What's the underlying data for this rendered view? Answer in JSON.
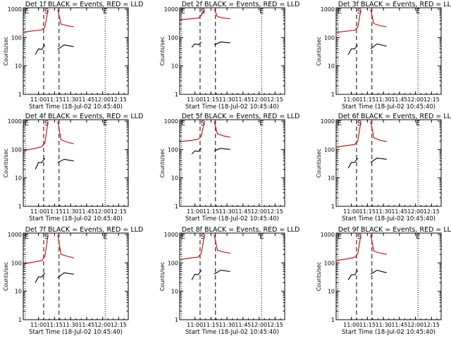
{
  "common": {
    "ylabel": "Counts/sec",
    "xlabel": "Start Time (18-Jul-02 10:45:40)",
    "x_tick_labels": [
      "11:00",
      "11:15",
      "11:30",
      "11:45",
      "12:00",
      "12:15"
    ],
    "y_tick_labels": [
      "1",
      "10",
      "100",
      "1000"
    ],
    "marker_labels": [
      "E",
      "S",
      "E"
    ],
    "colors": {
      "events": "#000000",
      "lld": "#cc0000"
    }
  },
  "chart_data": [
    {
      "type": "line",
      "title": "Det 1f BLACK = Events, RED = LLD",
      "xlabel": "Start Time (18-Jul-02 10:45:40)",
      "ylabel": "Counts/sec",
      "yscale": "log",
      "ylim": [
        1,
        1000
      ],
      "x_ticks": [
        "11:00",
        "11:15",
        "11:30",
        "11:45",
        "12:00",
        "12:15"
      ],
      "series": [
        {
          "name": "Events",
          "color": "#000000",
          "segments": [
            {
              "x": [
                10.95,
                11.0,
                11.05,
                11.1
              ],
              "y": [
                25,
                40,
                38,
                55
              ]
            },
            {
              "x": [
                11.3,
                11.4,
                11.55
              ],
              "y": [
                38,
                55,
                48
              ]
            }
          ]
        },
        {
          "name": "LLD",
          "color": "#cc0000",
          "segments": [
            {
              "x": [
                10.77,
                10.85,
                10.95,
                11.05,
                11.1,
                11.15
              ],
              "y": [
                150,
                165,
                175,
                185,
                230,
                1000
              ]
            },
            {
              "x": [
                11.3,
                11.35,
                11.45,
                11.55
              ],
              "y": [
                1000,
                300,
                260,
                240
              ]
            }
          ]
        }
      ],
      "markers": [
        {
          "label": "E",
          "x": 10.77
        },
        {
          "label": "S",
          "x": 11.1
        },
        {
          "label": "E",
          "x": 12.04
        }
      ]
    },
    {
      "type": "line",
      "title": "Det 2f BLACK = Events, RED = LLD",
      "xlabel": "Start Time (18-Jul-02 10:45:40)",
      "ylabel": "Counts/sec",
      "yscale": "log",
      "ylim": [
        1,
        1000
      ],
      "x_ticks": [
        "11:00",
        "11:15",
        "11:30",
        "11:45",
        "12:00",
        "12:15"
      ],
      "series": [
        {
          "name": "Events",
          "color": "#000000",
          "segments": [
            {
              "x": [
                10.95,
                11.0,
                11.05,
                11.1
              ],
              "y": [
                45,
                60,
                55,
                70
              ]
            },
            {
              "x": [
                11.3,
                11.4,
                11.55
              ],
              "y": [
                55,
                70,
                65
              ]
            }
          ]
        },
        {
          "name": "LLD",
          "color": "#cc0000",
          "segments": [
            {
              "x": [
                10.77,
                10.85,
                10.95,
                11.05,
                11.1,
                11.15
              ],
              "y": [
                430,
                440,
                460,
                480,
                600,
                1000
              ]
            },
            {
              "x": [
                11.3,
                11.35,
                11.45,
                11.55
              ],
              "y": [
                1000,
                550,
                480,
                460
              ]
            }
          ]
        }
      ],
      "markers": [
        {
          "label": "E",
          "x": 10.77
        },
        {
          "label": "S",
          "x": 11.1
        },
        {
          "label": "E",
          "x": 12.04
        }
      ]
    },
    {
      "type": "line",
      "title": "Det 3f BLACK = Events, RED = LLD",
      "xlabel": "Start Time (18-Jul-02 10:45:40)",
      "ylabel": "Counts/sec",
      "yscale": "log",
      "ylim": [
        1,
        1000
      ],
      "x_ticks": [
        "11:00",
        "11:15",
        "11:30",
        "11:45",
        "12:00",
        "12:15"
      ],
      "series": [
        {
          "name": "Events",
          "color": "#000000",
          "segments": [
            {
              "x": [
                10.95,
                11.0,
                11.05,
                11.1
              ],
              "y": [
                25,
                40,
                40,
                55
              ]
            },
            {
              "x": [
                11.3,
                11.4,
                11.55
              ],
              "y": [
                40,
                60,
                50
              ]
            }
          ]
        },
        {
          "name": "LLD",
          "color": "#cc0000",
          "segments": [
            {
              "x": [
                10.77,
                10.85,
                10.95,
                11.05,
                11.1,
                11.15
              ],
              "y": [
                150,
                160,
                170,
                180,
                230,
                1000
              ]
            },
            {
              "x": [
                11.3,
                11.35,
                11.45,
                11.55
              ],
              "y": [
                1000,
                310,
                260,
                240
              ]
            }
          ]
        }
      ],
      "markers": [
        {
          "label": "E",
          "x": 10.77
        },
        {
          "label": "S",
          "x": 11.1
        },
        {
          "label": "E",
          "x": 12.04
        }
      ]
    },
    {
      "type": "line",
      "title": "Det 4f BLACK = Events, RED = LLD",
      "xlabel": "Start Time (18-Jul-02 10:45:40)",
      "ylabel": "Counts/sec",
      "yscale": "log",
      "ylim": [
        1,
        1000
      ],
      "x_ticks": [
        "11:00",
        "11:15",
        "11:30",
        "11:45",
        "12:00",
        "12:15"
      ],
      "series": [
        {
          "name": "Events",
          "color": "#000000",
          "segments": [
            {
              "x": [
                10.95,
                11.0,
                11.05,
                11.1
              ],
              "y": [
                20,
                35,
                35,
                50
              ]
            },
            {
              "x": [
                11.3,
                11.4,
                11.55
              ],
              "y": [
                35,
                45,
                40
              ]
            }
          ]
        },
        {
          "name": "LLD",
          "color": "#cc0000",
          "segments": [
            {
              "x": [
                10.77,
                10.85,
                10.95,
                11.05,
                11.1,
                11.15
              ],
              "y": [
                90,
                100,
                110,
                125,
                170,
                1000
              ]
            },
            {
              "x": [
                11.3,
                11.35,
                11.45,
                11.55
              ],
              "y": [
                1000,
                220,
                180,
                160
              ]
            }
          ]
        }
      ],
      "markers": [
        {
          "label": "E",
          "x": 10.77
        },
        {
          "label": "S",
          "x": 11.1
        },
        {
          "label": "E",
          "x": 12.04
        }
      ]
    },
    {
      "type": "line",
      "title": "Det 5f BLACK = Events, RED = LLD",
      "xlabel": "Start Time (18-Jul-02 10:45:40)",
      "ylabel": "Counts/sec",
      "yscale": "log",
      "ylim": [
        1,
        1000
      ],
      "x_ticks": [
        "11:00",
        "11:15",
        "11:30",
        "11:45",
        "12:00",
        "12:15"
      ],
      "series": [
        {
          "name": "Events",
          "color": "#000000",
          "segments": [
            {
              "x": [
                10.95,
                11.0,
                11.05,
                11.1
              ],
              "y": [
                70,
                90,
                85,
                110
              ]
            },
            {
              "x": [
                11.3,
                11.4,
                11.55
              ],
              "y": [
                90,
                110,
                100
              ]
            }
          ]
        },
        {
          "name": "LLD",
          "color": "#cc0000",
          "segments": [
            {
              "x": [
                10.77,
                10.85,
                10.95,
                11.05,
                11.1,
                11.15
              ],
              "y": [
                190,
                200,
                210,
                230,
                300,
                1000
              ]
            },
            {
              "x": [
                11.3,
                11.35,
                11.45,
                11.55
              ],
              "y": [
                1000,
                360,
                300,
                270
              ]
            }
          ]
        }
      ],
      "markers": [
        {
          "label": "E",
          "x": 10.77
        },
        {
          "label": "S",
          "x": 11.1
        },
        {
          "label": "E",
          "x": 12.04
        }
      ]
    },
    {
      "type": "line",
      "title": "Det 6f BLACK = Events, RED = LLD",
      "xlabel": "Start Time (18-Jul-02 10:45:40)",
      "ylabel": "Counts/sec",
      "yscale": "log",
      "ylim": [
        1,
        1000
      ],
      "x_ticks": [
        "11:00",
        "11:15",
        "11:30",
        "11:45",
        "12:00",
        "12:15"
      ],
      "series": [
        {
          "name": "Events",
          "color": "#000000",
          "segments": [
            {
              "x": [
                10.95,
                11.0,
                11.05,
                11.1
              ],
              "y": [
                22,
                35,
                35,
                50
              ]
            },
            {
              "x": [
                11.3,
                11.4,
                11.55
              ],
              "y": [
                35,
                50,
                45
              ]
            }
          ]
        },
        {
          "name": "LLD",
          "color": "#cc0000",
          "segments": [
            {
              "x": [
                10.77,
                10.85,
                10.95,
                11.05,
                11.1,
                11.15
              ],
              "y": [
                120,
                130,
                140,
                150,
                200,
                1000
              ]
            },
            {
              "x": [
                11.3,
                11.35,
                11.45,
                11.55
              ],
              "y": [
                1000,
                260,
                210,
                190
              ]
            }
          ]
        }
      ],
      "markers": [
        {
          "label": "E",
          "x": 10.77
        },
        {
          "label": "S",
          "x": 11.1
        },
        {
          "label": "E",
          "x": 12.04
        }
      ]
    },
    {
      "type": "line",
      "title": "Det 7f BLACK = Events, RED = LLD",
      "xlabel": "Start Time (18-Jul-02 10:45:40)",
      "ylabel": "Counts/sec",
      "yscale": "log",
      "ylim": [
        1,
        1000
      ],
      "x_ticks": [
        "11:00",
        "11:15",
        "11:30",
        "11:45",
        "12:00",
        "12:15"
      ],
      "series": [
        {
          "name": "Events",
          "color": "#000000",
          "segments": [
            {
              "x": [
                10.95,
                11.0,
                11.05,
                11.1
              ],
              "y": [
                20,
                32,
                32,
                45
              ]
            },
            {
              "x": [
                11.3,
                11.4,
                11.55
              ],
              "y": [
                30,
                45,
                40
              ]
            }
          ]
        },
        {
          "name": "LLD",
          "color": "#cc0000",
          "segments": [
            {
              "x": [
                10.77,
                10.85,
                10.95,
                11.05,
                11.1,
                11.15
              ],
              "y": [
                90,
                100,
                110,
                120,
                170,
                1000
              ]
            },
            {
              "x": [
                11.3,
                11.35,
                11.45,
                11.55
              ],
              "y": [
                1000,
                200,
                170,
                150
              ]
            }
          ]
        }
      ],
      "markers": [
        {
          "label": "E",
          "x": 10.77
        },
        {
          "label": "S",
          "x": 11.1
        },
        {
          "label": "E",
          "x": 12.04
        }
      ]
    },
    {
      "type": "line",
      "title": "Det 8f BLACK = Events, RED = LLD",
      "xlabel": "Start Time (18-Jul-02 10:45:40)",
      "ylabel": "Counts/sec",
      "yscale": "log",
      "ylim": [
        1,
        1000
      ],
      "x_ticks": [
        "11:00",
        "11:15",
        "11:30",
        "11:45",
        "12:00",
        "12:15"
      ],
      "series": [
        {
          "name": "Events",
          "color": "#000000",
          "segments": [
            {
              "x": [
                10.95,
                11.0,
                11.05,
                11.1
              ],
              "y": [
                25,
                40,
                38,
                55
              ]
            },
            {
              "x": [
                11.3,
                11.4,
                11.55
              ],
              "y": [
                40,
                55,
                50
              ]
            }
          ]
        },
        {
          "name": "LLD",
          "color": "#cc0000",
          "segments": [
            {
              "x": [
                10.77,
                10.85,
                10.95,
                11.05,
                11.1,
                11.15
              ],
              "y": [
                130,
                140,
                150,
                160,
                220,
                1000
              ]
            },
            {
              "x": [
                11.3,
                11.35,
                11.45,
                11.55
              ],
              "y": [
                1000,
                280,
                240,
                220
              ]
            }
          ]
        }
      ],
      "markers": [
        {
          "label": "E",
          "x": 10.77
        },
        {
          "label": "S",
          "x": 11.1
        },
        {
          "label": "E",
          "x": 12.04
        }
      ]
    },
    {
      "type": "line",
      "title": "Det 9f BLACK = Events, RED = LLD",
      "xlabel": "Start Time (18-Jul-02 10:45:40)",
      "ylabel": "Counts/sec",
      "yscale": "log",
      "ylim": [
        1,
        1000
      ],
      "x_ticks": [
        "11:00",
        "11:15",
        "11:30",
        "11:45",
        "12:00",
        "12:15"
      ],
      "series": [
        {
          "name": "Events",
          "color": "#000000",
          "segments": [
            {
              "x": [
                10.95,
                11.0,
                11.05,
                11.1
              ],
              "y": [
                25,
                38,
                38,
                55
              ]
            },
            {
              "x": [
                11.3,
                11.4,
                11.55
              ],
              "y": [
                40,
                55,
                45
              ]
            }
          ]
        },
        {
          "name": "LLD",
          "color": "#cc0000",
          "segments": [
            {
              "x": [
                10.77,
                10.85,
                10.95,
                11.05,
                11.1,
                11.15
              ],
              "y": [
                120,
                130,
                140,
                155,
                210,
                1000
              ]
            },
            {
              "x": [
                11.3,
                11.35,
                11.45,
                11.55
              ],
              "y": [
                1000,
                260,
                220,
                200
              ]
            }
          ]
        }
      ],
      "markers": [
        {
          "label": "E",
          "x": 10.77
        },
        {
          "label": "S",
          "x": 11.1
        },
        {
          "label": "E",
          "x": 12.04
        }
      ]
    }
  ]
}
